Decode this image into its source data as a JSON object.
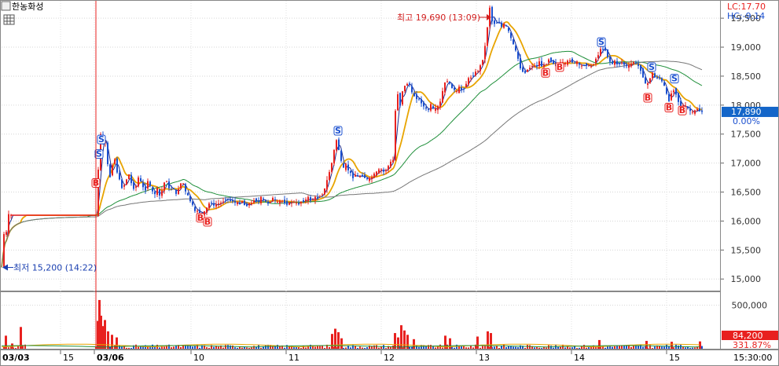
{
  "header": {
    "symbol_name": "한농화성",
    "lc_label": "LC:17.70",
    "hc_label": "HC:-9.14"
  },
  "annotations": {
    "high_label": "최고 19,690 (13:09)",
    "low_label": "최저 15,200 (14:22)"
  },
  "colors": {
    "up": "#e8211f",
    "down": "#1a4fcf",
    "ma5": "#1a2a8c",
    "ma20": "#e8a400",
    "ma60": "#1f8f3a",
    "ma120": "#777777",
    "current_price_bg": "#1466c9",
    "high_marker": "#d22020",
    "low_marker": "#1a3fb0"
  },
  "chart_data": {
    "type": "candlestick",
    "price_axis": {
      "ticks": [
        15000,
        15500,
        16000,
        16500,
        17000,
        17500,
        18000,
        18500,
        19000,
        19500
      ],
      "tick_labels": [
        "15,000",
        "15,500",
        "16,000",
        "16,500",
        "17,000",
        "17,500",
        "18,000",
        "18,500",
        "19,000",
        "19,500"
      ],
      "range": [
        14800,
        19800
      ]
    },
    "volume_axis": {
      "ticks": [
        500000
      ],
      "tick_labels": [
        "500,000"
      ],
      "range": [
        0,
        650000
      ]
    },
    "time_axis": {
      "labels": [
        "03/03",
        "15",
        "03/06",
        "10",
        "11",
        "12",
        "13",
        "14",
        "15",
        "15:30:00"
      ]
    },
    "current_price": {
      "value": 17890,
      "label": "17,890",
      "change_label": "0.00%"
    },
    "current_volume": {
      "value": 84200,
      "label": "84,200",
      "ratio_label": "331.87%"
    },
    "high": {
      "value": 19690
    },
    "low": {
      "value": 15200
    },
    "price_path": [
      [
        0,
        15200
      ],
      [
        2,
        15650
      ],
      [
        4,
        15900
      ],
      [
        6,
        15800
      ],
      [
        8,
        16100
      ],
      [
        9,
        16100
      ],
      [
        12,
        16100
      ],
      [
        20,
        16100
      ],
      [
        40,
        16100
      ],
      [
        60,
        16100
      ],
      [
        80,
        16100
      ],
      [
        100,
        16100
      ],
      [
        121,
        16100
      ],
      [
        122,
        16600
      ],
      [
        124,
        17150
      ],
      [
        126,
        17500
      ],
      [
        128,
        17300
      ],
      [
        131,
        17500
      ],
      [
        134,
        17100
      ],
      [
        137,
        16700
      ],
      [
        140,
        16900
      ],
      [
        143,
        17150
      ],
      [
        146,
        16900
      ],
      [
        150,
        16700
      ],
      [
        154,
        16550
      ],
      [
        158,
        16700
      ],
      [
        162,
        16800
      ],
      [
        166,
        16600
      ],
      [
        170,
        16550
      ],
      [
        174,
        16750
      ],
      [
        178,
        16650
      ],
      [
        182,
        16500
      ],
      [
        186,
        16700
      ],
      [
        190,
        16550
      ],
      [
        194,
        16450
      ],
      [
        198,
        16550
      ],
      [
        202,
        16400
      ],
      [
        206,
        16650
      ],
      [
        210,
        16700
      ],
      [
        214,
        16500
      ],
      [
        218,
        16600
      ],
      [
        222,
        16450
      ],
      [
        226,
        16600
      ],
      [
        230,
        16700
      ],
      [
        234,
        16500
      ],
      [
        238,
        16400
      ],
      [
        242,
        16300
      ],
      [
        246,
        16150
      ],
      [
        250,
        16200
      ],
      [
        254,
        16100
      ],
      [
        258,
        16150
      ],
      [
        262,
        16250
      ],
      [
        266,
        16350
      ],
      [
        270,
        16250
      ],
      [
        274,
        16300
      ],
      [
        278,
        16300
      ],
      [
        282,
        16350
      ],
      [
        286,
        16400
      ],
      [
        290,
        16350
      ],
      [
        294,
        16350
      ],
      [
        298,
        16300
      ],
      [
        302,
        16300
      ],
      [
        306,
        16350
      ],
      [
        310,
        16250
      ],
      [
        314,
        16300
      ],
      [
        318,
        16300
      ],
      [
        322,
        16400
      ],
      [
        326,
        16300
      ],
      [
        330,
        16400
      ],
      [
        334,
        16350
      ],
      [
        338,
        16300
      ],
      [
        342,
        16350
      ],
      [
        346,
        16400
      ],
      [
        350,
        16300
      ],
      [
        354,
        16350
      ],
      [
        358,
        16350
      ],
      [
        362,
        16300
      ],
      [
        366,
        16300
      ],
      [
        370,
        16350
      ],
      [
        374,
        16300
      ],
      [
        378,
        16300
      ],
      [
        382,
        16350
      ],
      [
        386,
        16350
      ],
      [
        390,
        16400
      ],
      [
        394,
        16350
      ],
      [
        398,
        16400
      ],
      [
        402,
        16400
      ],
      [
        406,
        16450
      ],
      [
        410,
        16500
      ],
      [
        414,
        16700
      ],
      [
        418,
        16900
      ],
      [
        422,
        17100
      ],
      [
        425,
        17450
      ],
      [
        428,
        17300
      ],
      [
        431,
        17100
      ],
      [
        434,
        16850
      ],
      [
        437,
        17000
      ],
      [
        440,
        16900
      ],
      [
        443,
        16850
      ],
      [
        446,
        16750
      ],
      [
        450,
        16800
      ],
      [
        454,
        16750
      ],
      [
        458,
        16800
      ],
      [
        462,
        16750
      ],
      [
        466,
        16700
      ],
      [
        470,
        16750
      ],
      [
        474,
        16800
      ],
      [
        478,
        16850
      ],
      [
        482,
        16900
      ],
      [
        486,
        16850
      ],
      [
        490,
        16900
      ],
      [
        494,
        17000
      ],
      [
        498,
        17050
      ],
      [
        501,
        17900
      ],
      [
        504,
        18200
      ],
      [
        507,
        18000
      ],
      [
        510,
        18250
      ],
      [
        514,
        18350
      ],
      [
        518,
        18400
      ],
      [
        522,
        18200
      ],
      [
        526,
        18150
      ],
      [
        530,
        18100
      ],
      [
        534,
        18050
      ],
      [
        538,
        17950
      ],
      [
        542,
        17900
      ],
      [
        546,
        18000
      ],
      [
        550,
        17900
      ],
      [
        554,
        17950
      ],
      [
        558,
        18050
      ],
      [
        562,
        18300
      ],
      [
        566,
        18450
      ],
      [
        570,
        18350
      ],
      [
        574,
        18300
      ],
      [
        578,
        18200
      ],
      [
        582,
        18300
      ],
      [
        586,
        18250
      ],
      [
        590,
        18350
      ],
      [
        594,
        18450
      ],
      [
        598,
        18500
      ],
      [
        602,
        18550
      ],
      [
        606,
        18600
      ],
      [
        610,
        18700
      ],
      [
        614,
        18900
      ],
      [
        618,
        19350
      ],
      [
        621,
        19690
      ],
      [
        624,
        19450
      ],
      [
        628,
        19400
      ],
      [
        632,
        19450
      ],
      [
        636,
        19350
      ],
      [
        640,
        19400
      ],
      [
        644,
        19300
      ],
      [
        648,
        19150
      ],
      [
        652,
        19000
      ],
      [
        656,
        18850
      ],
      [
        660,
        18650
      ],
      [
        664,
        18550
      ],
      [
        668,
        18600
      ],
      [
        672,
        18650
      ],
      [
        676,
        18700
      ],
      [
        680,
        18650
      ],
      [
        684,
        18750
      ],
      [
        688,
        18650
      ],
      [
        692,
        18700
      ],
      [
        696,
        18800
      ],
      [
        700,
        18750
      ],
      [
        704,
        18700
      ],
      [
        708,
        18650
      ],
      [
        712,
        18750
      ],
      [
        716,
        18700
      ],
      [
        720,
        18750
      ],
      [
        724,
        18800
      ],
      [
        728,
        18700
      ],
      [
        732,
        18750
      ],
      [
        736,
        18650
      ],
      [
        740,
        18700
      ],
      [
        744,
        18700
      ],
      [
        748,
        18650
      ],
      [
        752,
        18700
      ],
      [
        756,
        18800
      ],
      [
        760,
        18900
      ],
      [
        764,
        19000
      ],
      [
        768,
        18950
      ],
      [
        772,
        18800
      ],
      [
        776,
        18700
      ],
      [
        780,
        18750
      ],
      [
        784,
        18700
      ],
      [
        788,
        18750
      ],
      [
        792,
        18700
      ],
      [
        796,
        18650
      ],
      [
        800,
        18700
      ],
      [
        804,
        18750
      ],
      [
        808,
        18700
      ],
      [
        812,
        18650
      ],
      [
        816,
        18500
      ],
      [
        820,
        18300
      ],
      [
        824,
        18450
      ],
      [
        828,
        18550
      ],
      [
        832,
        18450
      ],
      [
        836,
        18500
      ],
      [
        840,
        18400
      ],
      [
        844,
        18300
      ],
      [
        848,
        18050
      ],
      [
        852,
        18200
      ],
      [
        856,
        18300
      ],
      [
        860,
        18100
      ],
      [
        864,
        17950
      ],
      [
        868,
        18000
      ],
      [
        872,
        17950
      ],
      [
        876,
        17900
      ],
      [
        880,
        17850
      ],
      [
        884,
        17950
      ],
      [
        888,
        17900
      ],
      [
        891,
        17890
      ]
    ],
    "volume_spikes": [
      [
        5,
        150000
      ],
      [
        13,
        60000
      ],
      [
        24,
        250000
      ],
      [
        122,
        320000
      ],
      [
        124,
        560000
      ],
      [
        126,
        380000
      ],
      [
        128,
        260000
      ],
      [
        131,
        330000
      ],
      [
        135,
        200000
      ],
      [
        140,
        160000
      ],
      [
        146,
        130000
      ],
      [
        420,
        170000
      ],
      [
        424,
        230000
      ],
      [
        428,
        190000
      ],
      [
        432,
        120000
      ],
      [
        500,
        180000
      ],
      [
        504,
        130000
      ],
      [
        508,
        270000
      ],
      [
        512,
        210000
      ],
      [
        516,
        160000
      ],
      [
        524,
        110000
      ],
      [
        564,
        150000
      ],
      [
        570,
        120000
      ],
      [
        605,
        140000
      ],
      [
        618,
        200000
      ],
      [
        622,
        180000
      ],
      [
        760,
        100000
      ],
      [
        820,
        90000
      ],
      [
        852,
        80000
      ],
      [
        888,
        84200
      ]
    ],
    "buy_markers": [
      [
        120,
        16650
      ],
      [
        253,
        16050
      ],
      [
        262,
        15980
      ],
      [
        692,
        18550
      ],
      [
        710,
        18650
      ],
      [
        822,
        18120
      ],
      [
        849,
        17950
      ],
      [
        866,
        17900
      ]
    ],
    "sell_markers": [
      [
        124,
        17150
      ],
      [
        127,
        17400
      ],
      [
        428,
        17550
      ],
      [
        763,
        19080
      ],
      [
        827,
        18650
      ],
      [
        856,
        18450
      ]
    ]
  }
}
